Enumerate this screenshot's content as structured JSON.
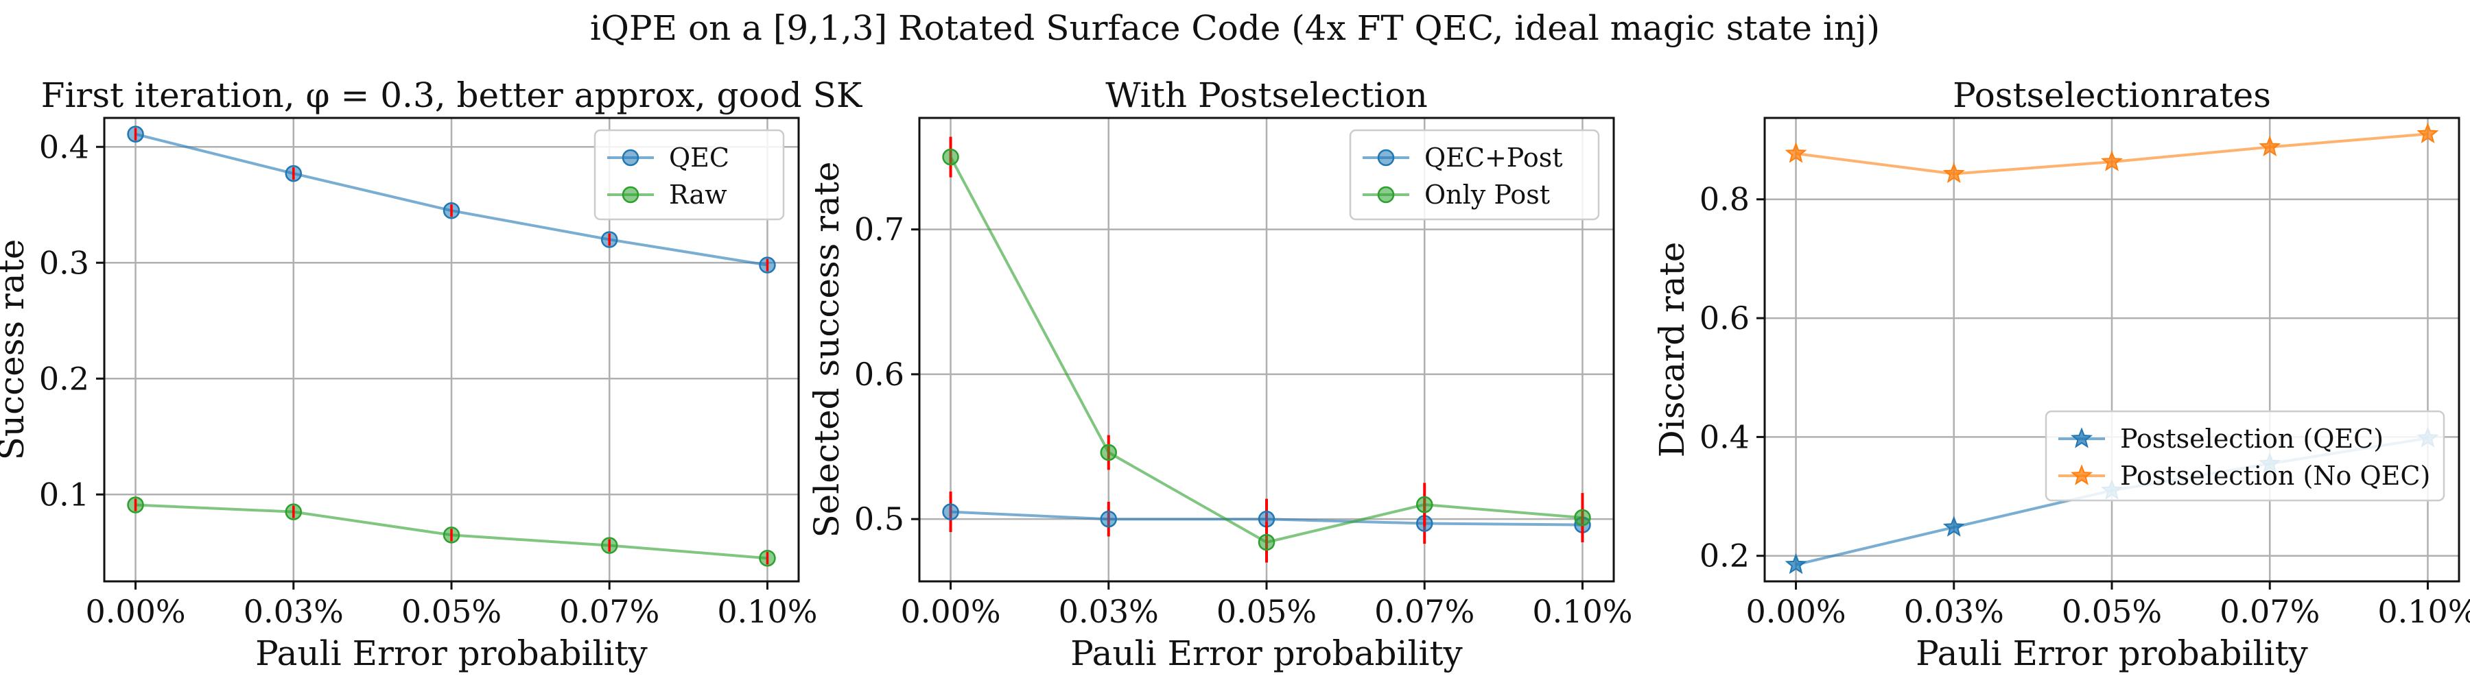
{
  "suptitle": "iQPE on a [9,1,3] Rotated Surface Code (4x FT QEC, ideal magic state inj)",
  "chart_data": [
    {
      "type": "line",
      "title": "First iteration, φ = 0.3, better approx, good SK",
      "xlabel": "Pauli Error probability",
      "ylabel": "Success rate",
      "categories": [
        "0.00%",
        "0.03%",
        "0.05%",
        "0.07%",
        "0.10%"
      ],
      "ylim": [
        0.025,
        0.425
      ],
      "yticks": [
        0.1,
        0.2,
        0.3,
        0.4
      ],
      "ytick_labels": [
        "0.1",
        "0.2",
        "0.3",
        "0.4"
      ],
      "grid": true,
      "legend_position": "top-right",
      "series": [
        {
          "name": "QEC",
          "color": "#1f77b4",
          "marker": "circle",
          "values": [
            0.411,
            0.377,
            0.345,
            0.32,
            0.298
          ]
        },
        {
          "name": "Raw",
          "color": "#2ca02c",
          "marker": "circle",
          "values": [
            0.091,
            0.085,
            0.065,
            0.056,
            0.045
          ]
        }
      ],
      "error_bar_color": "#ff0000"
    },
    {
      "type": "line",
      "title": "With Postselection",
      "xlabel": "Pauli Error probability",
      "ylabel": "Selected success rate",
      "categories": [
        "0.00%",
        "0.03%",
        "0.05%",
        "0.07%",
        "0.10%"
      ],
      "ylim": [
        0.457,
        0.777
      ],
      "yticks": [
        0.5,
        0.6,
        0.7
      ],
      "ytick_labels": [
        "0.5",
        "0.6",
        "0.7"
      ],
      "grid": true,
      "legend_position": "top-right",
      "series": [
        {
          "name": "QEC+Post",
          "color": "#1f77b4",
          "marker": "circle",
          "values": [
            0.505,
            0.5,
            0.5,
            0.497,
            0.496
          ],
          "errors": [
            0.014,
            0.012,
            0.014,
            0.014,
            0.012
          ]
        },
        {
          "name": "Only Post",
          "color": "#2ca02c",
          "marker": "circle",
          "values": [
            0.75,
            0.546,
            0.484,
            0.51,
            0.501
          ],
          "errors": [
            0.014,
            0.012,
            0.014,
            0.015,
            0.017
          ]
        }
      ],
      "error_bar_color": "#ff0000"
    },
    {
      "type": "line",
      "title": "Postselectionrates",
      "xlabel": "Pauli Error probability",
      "ylabel": "Discard rate",
      "categories": [
        "0.00%",
        "0.03%",
        "0.05%",
        "0.07%",
        "0.10%"
      ],
      "ylim": [
        0.157,
        0.937
      ],
      "yticks": [
        0.2,
        0.4,
        0.6,
        0.8
      ],
      "ytick_labels": [
        "0.2",
        "0.4",
        "0.6",
        "0.8"
      ],
      "grid": true,
      "legend_position": "center-right",
      "series": [
        {
          "name": "Postselection (QEC)",
          "color": "#1f77b4",
          "marker": "star",
          "values": [
            0.185,
            0.248,
            0.31,
            0.355,
            0.398
          ]
        },
        {
          "name": "Postselection (No QEC)",
          "color": "#ff7f0e",
          "marker": "star",
          "values": [
            0.877,
            0.843,
            0.863,
            0.888,
            0.91
          ]
        }
      ]
    }
  ]
}
